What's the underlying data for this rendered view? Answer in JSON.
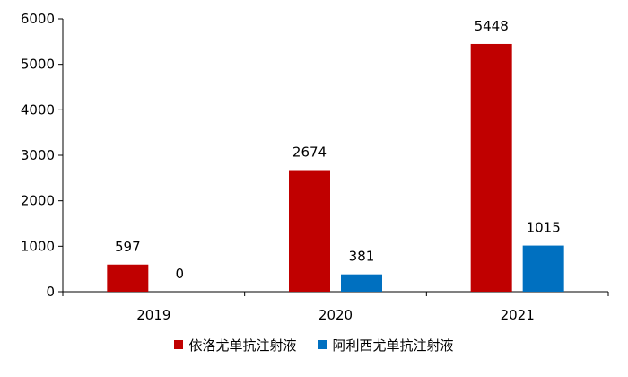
{
  "chart_data": {
    "type": "bar",
    "title": "",
    "xlabel": "",
    "ylabel": "",
    "categories": [
      "2019",
      "2020",
      "2021"
    ],
    "series": [
      {
        "name": "依洛尤单抗注射液",
        "values": [
          597,
          2674,
          5448
        ],
        "color": "#C00000"
      },
      {
        "name": "阿利西尤单抗注射液",
        "values": [
          0,
          381,
          1015
        ],
        "color": "#0070C0"
      }
    ],
    "ylim": [
      0,
      6000
    ],
    "yticks": [
      0,
      1000,
      2000,
      3000,
      4000,
      5000,
      6000
    ],
    "grid": false,
    "legend_position": "bottom",
    "data_labels": true
  }
}
